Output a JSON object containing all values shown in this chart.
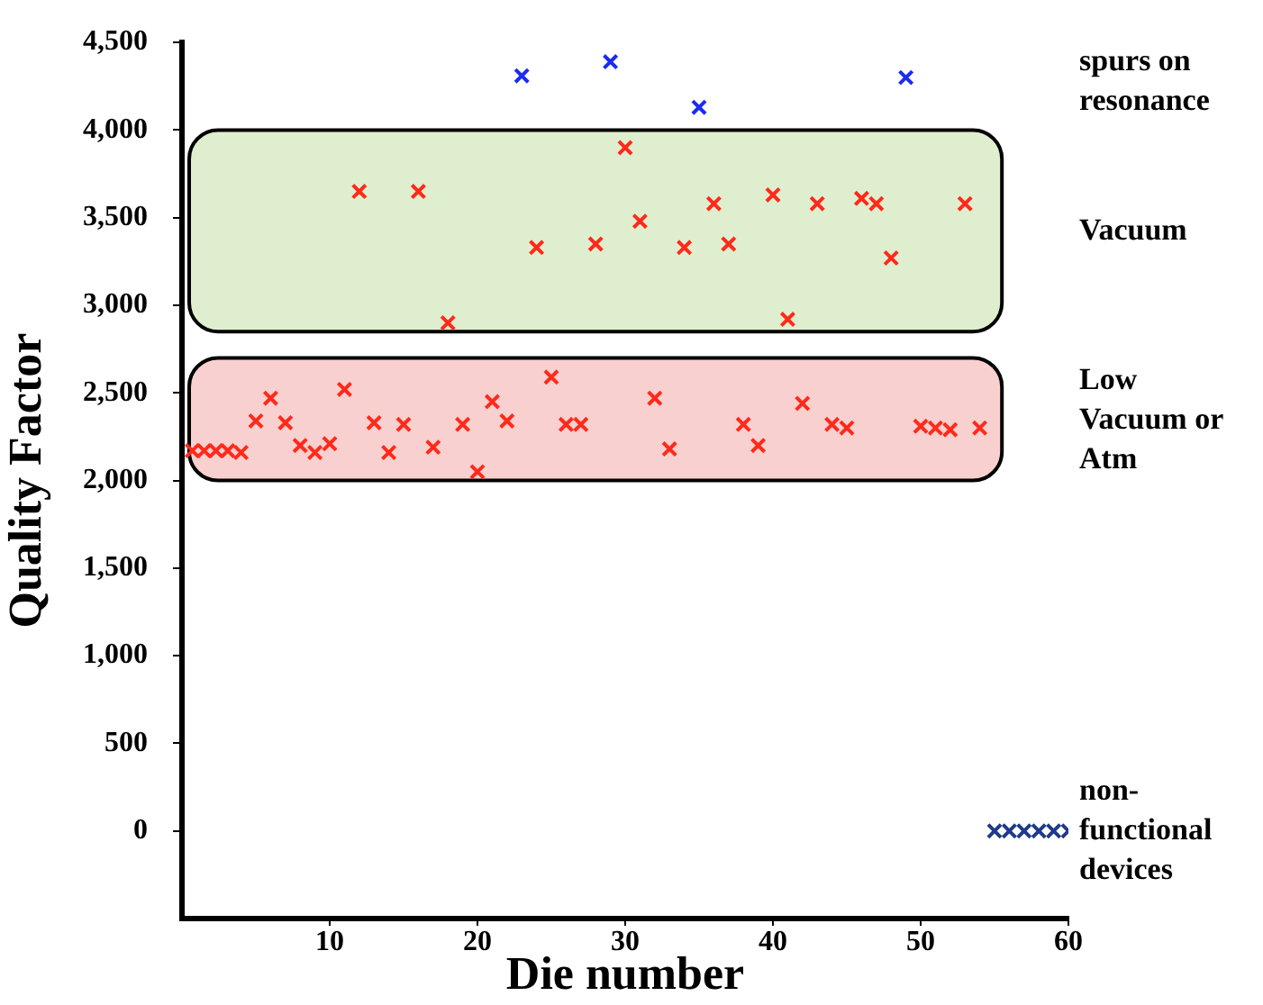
{
  "chart_data": {
    "type": "scatter",
    "xlabel": "Die number",
    "ylabel": "Quality Factor",
    "xlim": [
      0,
      60
    ],
    "xticks": [
      10,
      20,
      30,
      40,
      50,
      60
    ],
    "ylim": [
      -500,
      4500
    ],
    "yticks": [
      0,
      {
        "value": 500,
        "label": "500"
      },
      {
        "value": 1000,
        "label": "1,000"
      },
      {
        "value": 1500,
        "label": "1,500"
      },
      {
        "value": 2000,
        "label": "2,000"
      },
      {
        "value": 2500,
        "label": "2,500"
      },
      {
        "value": 3000,
        "label": "3,000"
      },
      {
        "value": 3500,
        "label": "3,500"
      },
      {
        "value": 4000,
        "label": "4,000"
      },
      {
        "value": 4500,
        "label": "4,500"
      }
    ],
    "grid": false,
    "legend": false,
    "marker": "cross",
    "bands": [
      {
        "axis": "y",
        "from": 2850,
        "to": 4000,
        "label": "Vacuum",
        "color": "#e0eed0"
      },
      {
        "axis": "y",
        "from": 2000,
        "to": 2700,
        "label": "Low Vacuum or Atm",
        "color": "#f8d0d0"
      }
    ],
    "series": [
      {
        "color": "#ff2a1a",
        "x": [
          12,
          16,
          18,
          24,
          28,
          30,
          31,
          34,
          36,
          37,
          40,
          41,
          43,
          46,
          47,
          48,
          53,
          0.7,
          1.5,
          2.3,
          3.1,
          4,
          5,
          6,
          7,
          8,
          9,
          10,
          11,
          13,
          14,
          15,
          17,
          19,
          20,
          21,
          22,
          25,
          26,
          27,
          32,
          33,
          38,
          39,
          42,
          44,
          45,
          50,
          51,
          52,
          54
        ],
        "values": [
          3650,
          3650,
          2900,
          3330,
          3350,
          3900,
          3480,
          3330,
          3580,
          3350,
          3630,
          2920,
          3580,
          3610,
          3580,
          3270,
          3580,
          2170,
          2170,
          2170,
          2170,
          2160,
          2340,
          2470,
          2330,
          2200,
          2160,
          2210,
          2520,
          2330,
          2160,
          2320,
          2190,
          2320,
          2050,
          2450,
          2340,
          2590,
          2320,
          2320,
          2470,
          2180,
          2320,
          2200,
          2440,
          2320,
          2300,
          2310,
          2300,
          2290,
          2300
        ]
      },
      {
        "name": "spurs on resonance",
        "color": "#1a2cf0",
        "x": [
          23,
          29,
          35,
          49
        ],
        "values": [
          4310,
          4390,
          4130,
          4300
        ]
      },
      {
        "name": "non-functional devices",
        "color": "#1f3a8a",
        "x": [
          55,
          56,
          57,
          58,
          59,
          60
        ],
        "values": [
          0,
          0,
          0,
          0,
          0,
          0
        ]
      }
    ]
  }
}
